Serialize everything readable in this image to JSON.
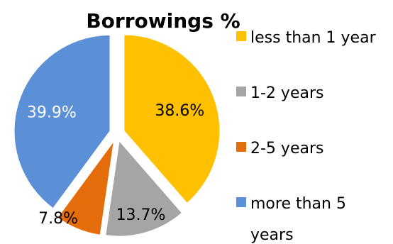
{
  "chart_data": {
    "type": "pie",
    "title": "Borrowings %",
    "categories": [
      "less than 1 year",
      "1-2 years",
      "2-5 years",
      "more than 5 years"
    ],
    "values": [
      38.6,
      13.7,
      7.8,
      39.9
    ],
    "value_labels": [
      "38.6%",
      "13.7%",
      "7.8%",
      "39.9%"
    ],
    "colors": [
      "#FFC000",
      "#A5A5A5",
      "#E46C0A",
      "#5B8FD6"
    ],
    "label_colors": [
      "#000000",
      "#000000",
      "#000000",
      "#ffffff"
    ],
    "legend_position": "right",
    "exploded": true
  }
}
